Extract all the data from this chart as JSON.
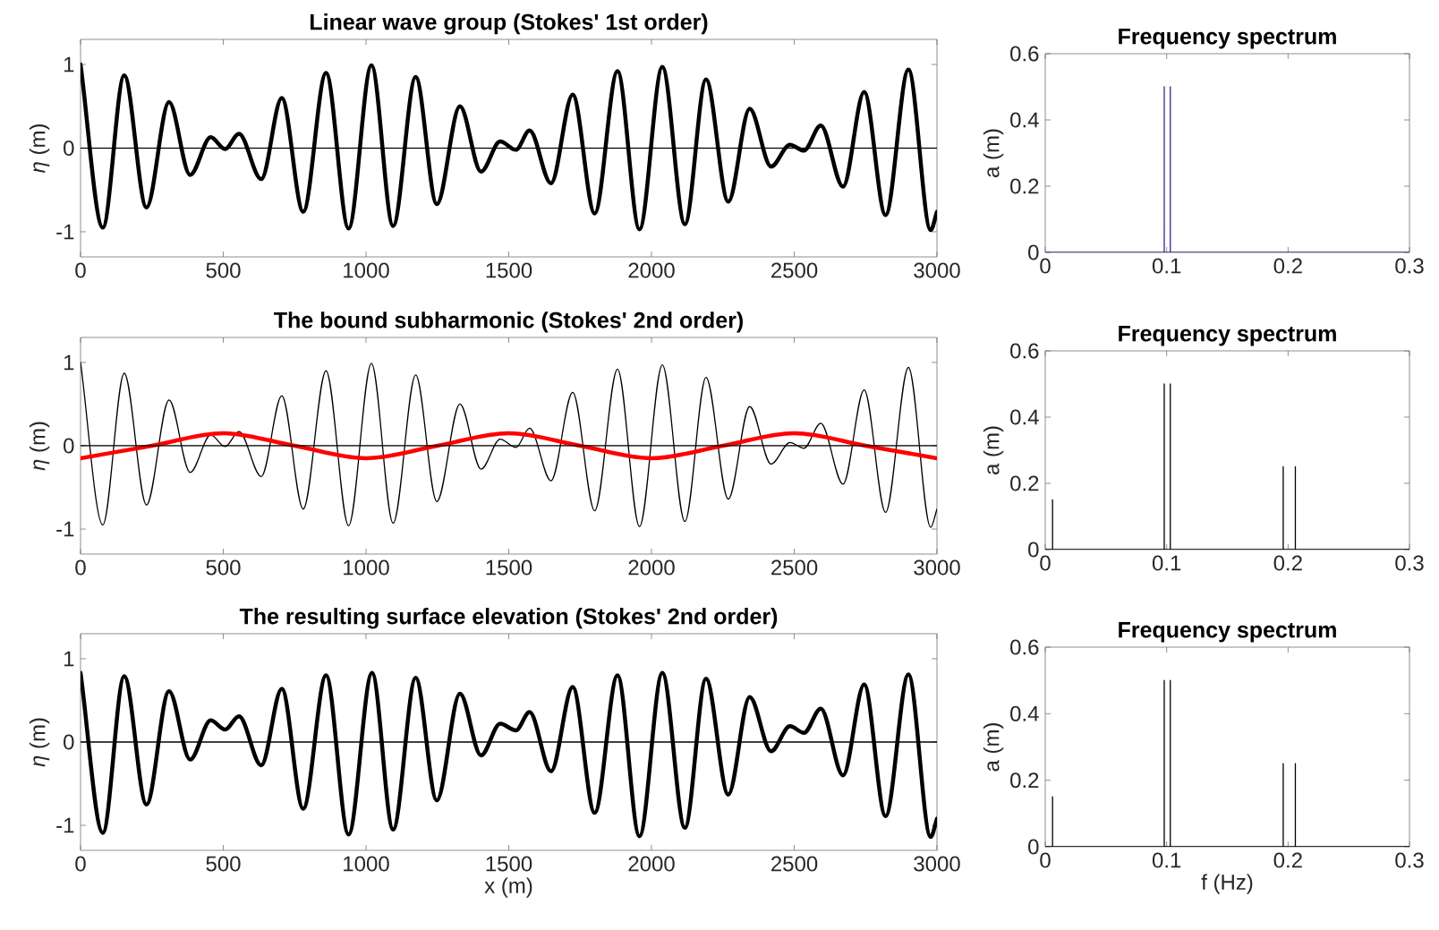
{
  "chart_data": [
    {
      "type": "line",
      "title": "Linear wave group (Stokes' 1st order)",
      "ylabel": "*η* (m)",
      "xlim": [
        0,
        3000
      ],
      "xticks": [
        0,
        500,
        1000,
        1500,
        2000,
        2500,
        3000
      ],
      "ylim": [
        -1.3,
        1.3
      ],
      "yticks": [
        -1,
        0,
        1
      ],
      "ref_lines": [
        {
          "axis": "y",
          "value": 0,
          "color": "#000000"
        }
      ],
      "series": [
        {
          "color": "#000000",
          "x": [
            0,
            78,
            153,
            231,
            310,
            384,
            456,
            506,
            555,
            633,
            705,
            780,
            860,
            939,
            1019,
            1095,
            1174,
            1248,
            1329,
            1403,
            1470,
            1525,
            1573,
            1648,
            1724,
            1801,
            1881,
            1958,
            2038,
            2117,
            2191,
            2269,
            2344,
            2419,
            2485,
            2534,
            2593,
            2671,
            2745,
            2820,
            2900,
            2978,
            3000
          ],
          "values": [
            1.0,
            -0.95,
            0.87,
            -0.71,
            0.55,
            -0.32,
            0.13,
            -0.01,
            0.17,
            -0.37,
            0.6,
            -0.76,
            0.9,
            -0.96,
            0.99,
            -0.93,
            0.85,
            -0.67,
            0.5,
            -0.28,
            0.08,
            -0.02,
            0.21,
            -0.42,
            0.64,
            -0.78,
            0.92,
            -0.97,
            0.97,
            -0.91,
            0.82,
            -0.64,
            0.47,
            -0.22,
            0.04,
            -0.03,
            0.27,
            -0.46,
            0.67,
            -0.8,
            0.94,
            -0.98,
            -0.76
          ]
        }
      ]
    },
    {
      "type": "line",
      "title": "Frequency spectrum",
      "ylabel": "a (m)",
      "xlim": [
        0,
        0.3
      ],
      "xticks": [
        0,
        0.1,
        0.2,
        0.3
      ],
      "ylim": [
        0,
        0.6
      ],
      "yticks": [
        0,
        0.2,
        0.4,
        0.6
      ],
      "series": [
        {
          "color": "#2e2e8c",
          "x": [
            0,
            0.098,
            0.098,
            0.098,
            0.103,
            0.103,
            0.103,
            0.3
          ],
          "values": [
            0,
            0,
            0.5,
            0,
            0,
            0.5,
            0,
            0
          ]
        }
      ]
    },
    {
      "type": "line",
      "title": "The bound subharmonic (Stokes' 2nd order)",
      "ylabel": "*η* (m)",
      "xlim": [
        0,
        3000
      ],
      "xticks": [
        0,
        500,
        1000,
        1500,
        2000,
        2500,
        3000
      ],
      "ylim": [
        -1.3,
        1.3
      ],
      "yticks": [
        -1,
        0,
        1
      ],
      "ref_lines": [
        {
          "axis": "y",
          "value": 0,
          "color": "#000000"
        }
      ],
      "series": [
        {
          "color": "#000000",
          "x": [
            0,
            78,
            153,
            231,
            310,
            384,
            456,
            506,
            555,
            633,
            705,
            780,
            860,
            939,
            1019,
            1095,
            1174,
            1248,
            1329,
            1403,
            1470,
            1525,
            1573,
            1648,
            1724,
            1801,
            1881,
            1958,
            2038,
            2117,
            2191,
            2269,
            2344,
            2419,
            2485,
            2534,
            2593,
            2671,
            2745,
            2820,
            2900,
            2978,
            3000
          ],
          "values": [
            1.0,
            -0.95,
            0.87,
            -0.71,
            0.55,
            -0.32,
            0.13,
            -0.01,
            0.17,
            -0.37,
            0.6,
            -0.76,
            0.9,
            -0.96,
            0.99,
            -0.93,
            0.85,
            -0.67,
            0.5,
            -0.28,
            0.08,
            -0.02,
            0.21,
            -0.42,
            0.64,
            -0.78,
            0.92,
            -0.97,
            0.97,
            -0.91,
            0.82,
            -0.64,
            0.47,
            -0.22,
            0.04,
            -0.03,
            0.27,
            -0.46,
            0.67,
            -0.8,
            0.94,
            -0.98,
            -0.76
          ]
        },
        {
          "color": "#ff0000",
          "x": [
            0,
            250,
            500,
            750,
            1000,
            1250,
            1500,
            1750,
            2000,
            2250,
            2500,
            2750,
            3000
          ],
          "values": [
            -0.15,
            0,
            0.15,
            0,
            -0.15,
            0,
            0.15,
            0,
            -0.15,
            0,
            0.15,
            0,
            -0.15
          ]
        }
      ]
    },
    {
      "type": "line",
      "title": "Frequency spectrum",
      "ylabel": "a (m)",
      "xlim": [
        0,
        0.3
      ],
      "xticks": [
        0,
        0.1,
        0.2,
        0.3
      ],
      "ylim": [
        0,
        0.6
      ],
      "yticks": [
        0,
        0.2,
        0.4,
        0.6
      ],
      "series": [
        {
          "color": "#000000",
          "x": [
            0,
            0.006,
            0.006,
            0.006,
            0.098,
            0.098,
            0.098,
            0.103,
            0.103,
            0.103,
            0.196,
            0.196,
            0.196,
            0.206,
            0.206,
            0.206,
            0.3
          ],
          "values": [
            0,
            0,
            0.15,
            0,
            0,
            0.5,
            0,
            0,
            0.5,
            0,
            0,
            0.25,
            0,
            0,
            0.25,
            0,
            0
          ]
        }
      ]
    },
    {
      "type": "line",
      "title": "The resulting surface elevation (Stokes' 2nd order)",
      "xlabel": "x (m)",
      "ylabel": "*η* (m)",
      "xlim": [
        0,
        3000
      ],
      "xticks": [
        0,
        500,
        1000,
        1500,
        2000,
        2500,
        3000
      ],
      "ylim": [
        -1.3,
        1.3
      ],
      "yticks": [
        -1,
        0,
        1
      ],
      "ref_lines": [
        {
          "axis": "y",
          "value": 0,
          "color": "#000000"
        }
      ],
      "series": [
        {
          "color": "#000000",
          "x": [
            0,
            78,
            153,
            231,
            310,
            384,
            456,
            506,
            555,
            633,
            705,
            780,
            860,
            939,
            1021,
            1095,
            1174,
            1248,
            1329,
            1403,
            1470,
            1525,
            1573,
            1648,
            1724,
            1801,
            1881,
            1958,
            2038,
            2117,
            2191,
            2269,
            2344,
            2419,
            2485,
            2534,
            2593,
            2671,
            2745,
            2820,
            2900,
            2978,
            3000
          ],
          "values": [
            0.83,
            -1.09,
            0.79,
            -0.75,
            0.61,
            -0.21,
            0.26,
            0.15,
            0.31,
            -0.28,
            0.64,
            -0.8,
            0.8,
            -1.11,
            0.83,
            -1.05,
            0.77,
            -0.7,
            0.58,
            -0.16,
            0.22,
            0.14,
            0.36,
            -0.35,
            0.66,
            -0.85,
            0.8,
            -1.13,
            0.83,
            -1.03,
            0.76,
            -0.63,
            0.54,
            -0.11,
            0.19,
            0.11,
            0.4,
            -0.4,
            0.69,
            -0.89,
            0.81,
            -1.14,
            -0.92
          ]
        }
      ]
    },
    {
      "type": "line",
      "title": "Frequency spectrum",
      "xlabel": "f (Hz)",
      "ylabel": "a (m)",
      "xlim": [
        0,
        0.3
      ],
      "xticks": [
        0,
        0.1,
        0.2,
        0.3
      ],
      "ylim": [
        0,
        0.6
      ],
      "yticks": [
        0,
        0.2,
        0.4,
        0.6
      ],
      "series": [
        {
          "color": "#000000",
          "x": [
            0,
            0.006,
            0.006,
            0.006,
            0.098,
            0.098,
            0.098,
            0.103,
            0.103,
            0.103,
            0.196,
            0.196,
            0.196,
            0.206,
            0.206,
            0.206,
            0.3
          ],
          "values": [
            0,
            0,
            0.15,
            0,
            0,
            0.5,
            0,
            0,
            0.5,
            0,
            0,
            0.25,
            0,
            0,
            0.25,
            0,
            0
          ]
        }
      ]
    }
  ]
}
